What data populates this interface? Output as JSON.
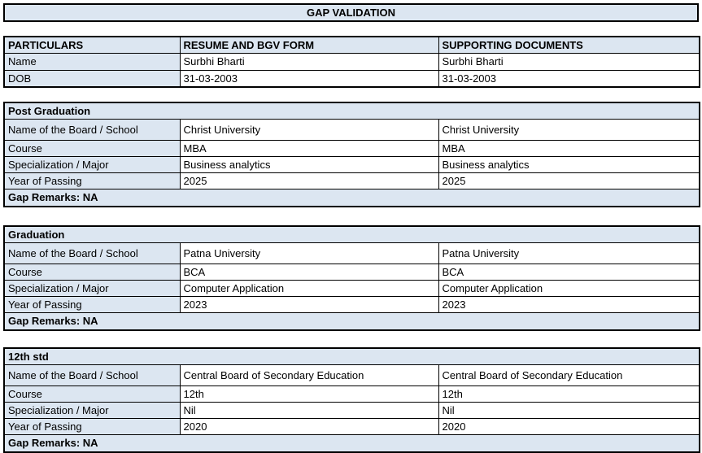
{
  "banner": {
    "title": "GAP VALIDATION"
  },
  "colors": {
    "accent_fill": "#dce6f1",
    "border": "#000000",
    "cell_background": "#ffffff",
    "text": "#000000"
  },
  "header_table": {
    "columns": [
      "PARTICULARS",
      "RESUME AND BGV FORM",
      "SUPPORTING DOCUMENTS"
    ],
    "rows": [
      {
        "label": "Name",
        "resume": "Surbhi Bharti",
        "supporting": "Surbhi Bharti"
      },
      {
        "label": "DOB",
        "resume": "31-03-2003",
        "supporting": "31-03-2003"
      }
    ]
  },
  "sections": [
    {
      "title": "Post Graduation",
      "rows": [
        {
          "label": "Name of the Board / School",
          "resume": "Christ University",
          "supporting": "Christ University"
        },
        {
          "label": "Course",
          "resume": "MBA",
          "supporting": "MBA"
        },
        {
          "label": "Specialization / Major",
          "resume": "Business analytics",
          "supporting": "Business analytics"
        },
        {
          "label": "Year of Passing",
          "resume": "2025",
          "supporting": "2025"
        }
      ],
      "gap_remarks": "Gap Remarks: NA"
    },
    {
      "title": "Graduation",
      "rows": [
        {
          "label": "Name of the Board / School",
          "resume": "Patna University",
          "supporting": "Patna University"
        },
        {
          "label": "Course",
          "resume": "BCA",
          "supporting": "BCA"
        },
        {
          "label": "Specialization / Major",
          "resume": "Computer Application",
          "supporting": "Computer Application"
        },
        {
          "label": "Year of Passing",
          "resume": "2023",
          "supporting": "2023"
        }
      ],
      "gap_remarks": "Gap Remarks: NA"
    },
    {
      "title": "12th std",
      "rows": [
        {
          "label": "Name of the Board / School",
          "resume": "Central Board of Secondary Education",
          "supporting": "Central Board of Secondary Education"
        },
        {
          "label": "Course",
          "resume": "12th",
          "supporting": "12th"
        },
        {
          "label": "Specialization / Major",
          "resume": "Nil",
          "supporting": "Nil"
        },
        {
          "label": "Year of Passing",
          "resume": "2020",
          "supporting": "2020"
        }
      ],
      "gap_remarks": "Gap Remarks: NA"
    }
  ]
}
